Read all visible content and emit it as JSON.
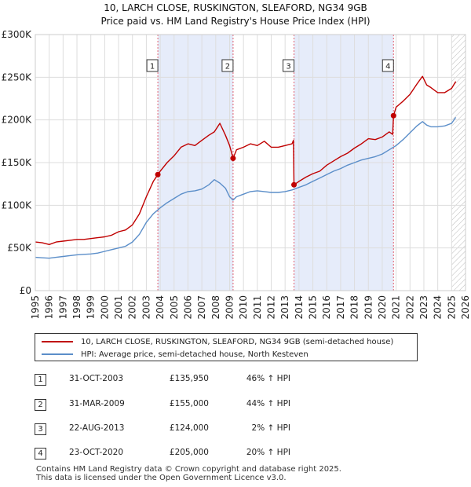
{
  "title_line1": "10, LARCH CLOSE, RUSKINGTON, SLEAFORD, NG34 9GB",
  "title_line2": "Price paid vs. HM Land Registry's House Price Index (HPI)",
  "legend": {
    "red_label": "10, LARCH CLOSE, RUSKINGTON, SLEAFORD, NG34 9GB (semi-detached house)",
    "blue_label": "HPI: Average price, semi-detached house, North Kesteven",
    "red_color": "#c00000",
    "blue_color": "#5b8ec9"
  },
  "sales": [
    {
      "n": "1",
      "date": "31-OCT-2003",
      "price": "£135,950",
      "hpi": "46% ↑ HPI"
    },
    {
      "n": "2",
      "date": "31-MAR-2009",
      "price": "£155,000",
      "hpi": "44% ↑ HPI"
    },
    {
      "n": "3",
      "date": "22-AUG-2013",
      "price": "£124,000",
      "hpi": "2% ↑ HPI"
    },
    {
      "n": "4",
      "date": "23-OCT-2020",
      "price": "£205,000",
      "hpi": "20% ↑ HPI"
    }
  ],
  "footer": {
    "line1": "Contains HM Land Registry data © Crown copyright and database right 2025.",
    "line2": "This data is licensed under the Open Government Licence v3.0."
  },
  "chart_data": {
    "type": "line",
    "title": "10, LARCH CLOSE, RUSKINGTON, SLEAFORD, NG34 9GB — Price paid vs. HM Land Registry's House Price Index (HPI)",
    "xlabel": "",
    "ylabel": "",
    "xlim": [
      1995,
      2026
    ],
    "ylim": [
      0,
      300000
    ],
    "y_ticks": [
      0,
      50000,
      100000,
      150000,
      200000,
      250000,
      300000
    ],
    "y_tick_labels": [
      "£0",
      "£50K",
      "£100K",
      "£150K",
      "£200K",
      "£250K",
      "£300K"
    ],
    "x_ticks": [
      1995,
      1996,
      1997,
      1998,
      1999,
      2000,
      2001,
      2002,
      2003,
      2004,
      2005,
      2006,
      2007,
      2008,
      2009,
      2010,
      2011,
      2012,
      2013,
      2014,
      2015,
      2016,
      2017,
      2018,
      2019,
      2020,
      2021,
      2022,
      2023,
      2024,
      2025,
      2026
    ],
    "x_tick_labels": [
      "1995",
      "1996",
      "1997",
      "1998",
      "1999",
      "2000",
      "2001",
      "2002",
      "2003",
      "2004",
      "2005",
      "2006",
      "2007",
      "2008",
      "2009",
      "2010",
      "2011",
      "2012",
      "2013",
      "2014",
      "2015",
      "2016",
      "2017",
      "2018",
      "2019",
      "2020",
      "2021",
      "2022",
      "2023",
      "2024",
      "2025",
      "2026"
    ],
    "grid": true,
    "shaded_periods": [
      [
        2003.83,
        2009.25
      ],
      [
        2013.64,
        2020.81
      ]
    ],
    "hatched_from": 2025.0,
    "markers": [
      {
        "label": "1",
        "x": 2003.83,
        "y": 135950
      },
      {
        "label": "2",
        "x": 2009.25,
        "y": 155000
      },
      {
        "label": "3",
        "x": 2013.64,
        "y": 124000
      },
      {
        "label": "4",
        "x": 2020.81,
        "y": 205000
      }
    ],
    "series": [
      {
        "name": "10, LARCH CLOSE, RUSKINGTON, SLEAFORD, NG34 9GB (semi-detached house)",
        "color": "#c00000",
        "x": [
          1995.0,
          1995.5,
          1996.0,
          1996.5,
          1997.0,
          1997.5,
          1998.0,
          1998.5,
          1999.0,
          1999.5,
          2000.0,
          2000.5,
          2001.0,
          2001.5,
          2002.0,
          2002.5,
          2003.0,
          2003.5,
          2003.83,
          2004.0,
          2004.5,
          2005.0,
          2005.5,
          2006.0,
          2006.5,
          2007.0,
          2007.5,
          2007.9,
          2008.3,
          2008.7,
          2009.0,
          2009.25,
          2009.5,
          2010.0,
          2010.5,
          2011.0,
          2011.5,
          2012.0,
          2012.5,
          2013.0,
          2013.5,
          2013.6,
          2013.64,
          2014.0,
          2014.5,
          2015.0,
          2015.5,
          2016.0,
          2016.5,
          2017.0,
          2017.5,
          2018.0,
          2018.5,
          2019.0,
          2019.5,
          2020.0,
          2020.5,
          2020.75,
          2020.81,
          2021.0,
          2021.5,
          2022.0,
          2022.5,
          2022.9,
          2023.2,
          2023.5,
          2024.0,
          2024.5,
          2025.0,
          2025.3
        ],
        "y": [
          57000,
          56000,
          54000,
          57000,
          58000,
          59000,
          60000,
          60000,
          61000,
          62000,
          63000,
          65000,
          69000,
          71000,
          77000,
          90000,
          110000,
          128000,
          135950,
          140000,
          150000,
          158000,
          168000,
          172000,
          170000,
          176000,
          182000,
          186000,
          196000,
          182000,
          170000,
          155000,
          165000,
          168000,
          172000,
          170000,
          175000,
          168000,
          168000,
          170000,
          172000,
          176000,
          124000,
          128000,
          133000,
          137000,
          140000,
          147000,
          152000,
          157000,
          161000,
          167000,
          172000,
          178000,
          177000,
          180000,
          186000,
          183000,
          205000,
          215000,
          222000,
          230000,
          242000,
          251000,
          241000,
          238000,
          232000,
          232000,
          237000,
          245000
        ]
      },
      {
        "name": "HPI: Average price, semi-detached house, North Kesteven",
        "color": "#5b8ec9",
        "x": [
          1995.0,
          1995.5,
          1996.0,
          1996.5,
          1997.0,
          1997.5,
          1998.0,
          1998.5,
          1999.0,
          1999.5,
          2000.0,
          2000.5,
          2001.0,
          2001.5,
          2002.0,
          2002.5,
          2003.0,
          2003.5,
          2004.0,
          2004.5,
          2005.0,
          2005.5,
          2006.0,
          2006.5,
          2007.0,
          2007.5,
          2007.9,
          2008.3,
          2008.7,
          2009.0,
          2009.25,
          2009.5,
          2010.0,
          2010.5,
          2011.0,
          2011.5,
          2012.0,
          2012.5,
          2013.0,
          2013.5,
          2014.0,
          2014.5,
          2015.0,
          2015.5,
          2016.0,
          2016.5,
          2017.0,
          2017.5,
          2018.0,
          2018.5,
          2019.0,
          2019.5,
          2020.0,
          2020.5,
          2021.0,
          2021.5,
          2022.0,
          2022.5,
          2022.9,
          2023.2,
          2023.5,
          2024.0,
          2024.5,
          2025.0,
          2025.3
        ],
        "y": [
          39000,
          38500,
          38000,
          39000,
          40000,
          41000,
          42000,
          42500,
          43000,
          44000,
          46000,
          48000,
          50000,
          52000,
          57000,
          66000,
          80000,
          90000,
          97000,
          103000,
          108000,
          113000,
          116000,
          117000,
          119000,
          124000,
          130000,
          126000,
          120000,
          110000,
          106000,
          110000,
          113000,
          116000,
          117000,
          116000,
          115000,
          115000,
          116000,
          118000,
          121000,
          124000,
          128000,
          132000,
          136000,
          140000,
          143000,
          147000,
          150000,
          153000,
          155000,
          157000,
          160000,
          165000,
          170000,
          177000,
          185000,
          193000,
          198000,
          194000,
          192000,
          192000,
          193000,
          196000,
          203000
        ]
      }
    ]
  }
}
